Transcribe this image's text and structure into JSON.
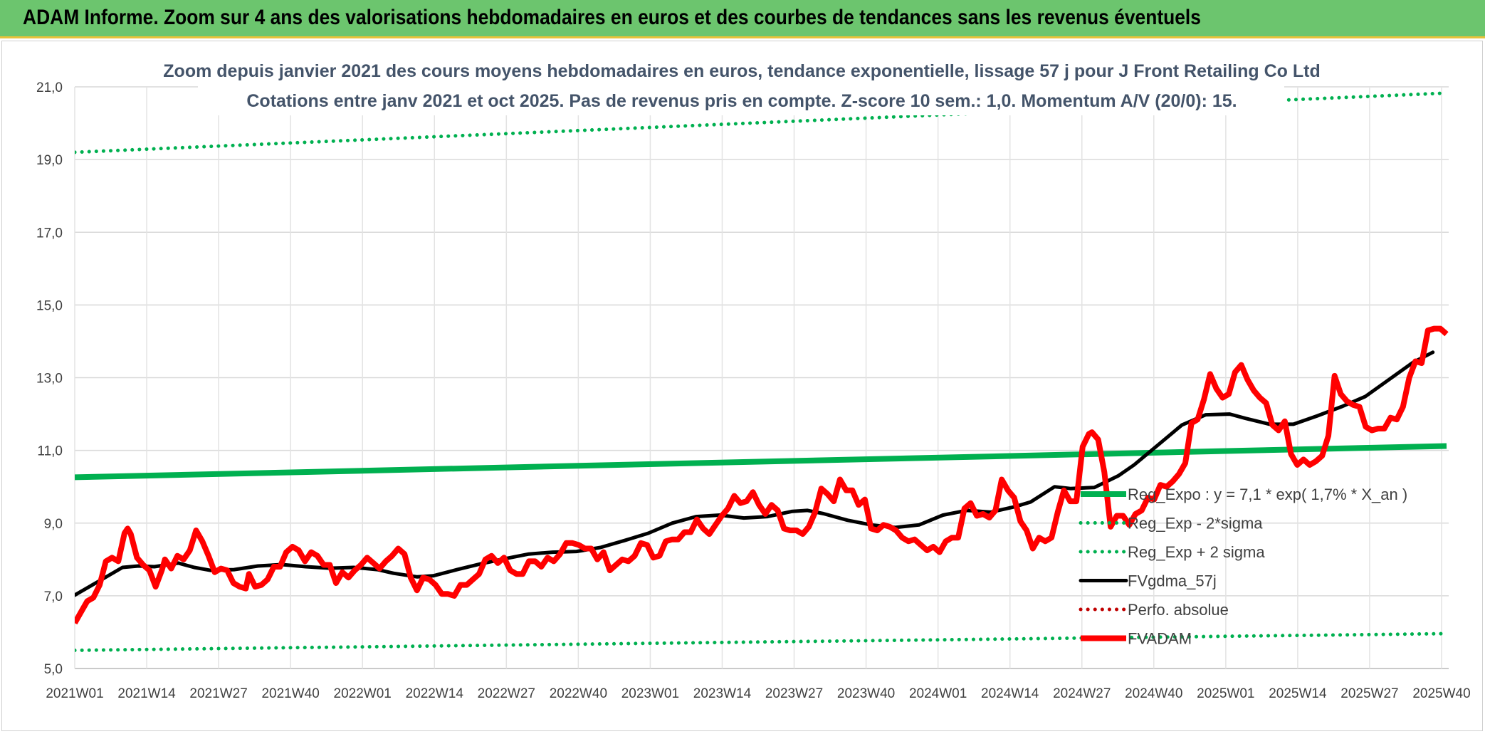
{
  "banner": {
    "title": "ADAM Informe. Zoom sur 4 ans des valorisations hebdomadaires en euros et des courbes de tendances sans les revenus éventuels"
  },
  "chart_data": {
    "type": "line",
    "title": "Zoom depuis janvier 2021 des cours moyens hebdomadaires en euros, tendance exponentielle, lissage 57 j pour J Front Retailing Co Ltd",
    "subtitle": "Cotations entre janv 2021 et oct 2025. Pas de revenus pris en compte. Z-score 10 sem.: 1,0. Momentum A/V (20/0): 15.",
    "xlabel": "",
    "ylabel": "",
    "ylim": [
      5.0,
      21.0
    ],
    "yticks": [
      "5,0",
      "7,0",
      "9,0",
      "11,0",
      "13,0",
      "15,0",
      "17,0",
      "19,0",
      "21,0"
    ],
    "x_tick_labels": [
      "2021W01",
      "2021W14",
      "2021W27",
      "2021W40",
      "2022W01",
      "2022W14",
      "2022W27",
      "2022W40",
      "2023W01",
      "2023W14",
      "2023W27",
      "2023W40",
      "2024W01",
      "2024W14",
      "2024W27",
      "2024W40",
      "2025W01",
      "2025W14",
      "2025W27",
      "2025W40"
    ],
    "x_range_weeks": [
      0,
      247
    ],
    "grid": true,
    "legend_position": "right",
    "series": [
      {
        "name": "Reg_Expo : y = 7,1 * exp( 1,7% *  X_an )",
        "color": "#00b050",
        "style": "solid-thick",
        "points": [
          [
            0,
            10.26
          ],
          [
            247,
            11.12
          ]
        ]
      },
      {
        "name": "Reg_Exp - 2*sigma",
        "color": "#00b050",
        "style": "dotted",
        "points": [
          [
            0,
            5.5
          ],
          [
            247,
            5.96
          ]
        ]
      },
      {
        "name": "Reg_Exp + 2 sigma",
        "color": "#00b050",
        "style": "dotted",
        "points": [
          [
            0,
            19.2
          ],
          [
            247,
            20.83
          ]
        ]
      },
      {
        "name": "FVgdma_57j",
        "color": "#000000",
        "style": "solid",
        "points": [
          [
            0,
            7.02
          ],
          [
            6,
            7.4
          ],
          [
            12,
            7.78
          ],
          [
            16,
            7.82
          ],
          [
            20,
            7.8
          ],
          [
            26,
            7.9
          ],
          [
            30,
            7.78
          ],
          [
            34,
            7.7
          ],
          [
            40,
            7.72
          ],
          [
            46,
            7.82
          ],
          [
            52,
            7.86
          ],
          [
            58,
            7.8
          ],
          [
            64,
            7.76
          ],
          [
            70,
            7.78
          ],
          [
            76,
            7.72
          ],
          [
            80,
            7.62
          ],
          [
            86,
            7.52
          ],
          [
            90,
            7.55
          ],
          [
            96,
            7.72
          ],
          [
            102,
            7.88
          ],
          [
            108,
            8.02
          ],
          [
            114,
            8.15
          ],
          [
            120,
            8.2
          ],
          [
            126,
            8.22
          ],
          [
            132,
            8.33
          ],
          [
            138,
            8.52
          ],
          [
            144,
            8.72
          ],
          [
            150,
            9.0
          ],
          [
            156,
            9.18
          ],
          [
            162,
            9.22
          ],
          [
            168,
            9.14
          ],
          [
            174,
            9.18
          ],
          [
            180,
            9.32
          ],
          [
            184,
            9.35
          ],
          [
            188,
            9.26
          ],
          [
            194,
            9.08
          ],
          [
            200,
            8.95
          ],
          [
            206,
            8.88
          ],
          [
            212,
            8.95
          ],
          [
            218,
            9.22
          ],
          [
            224,
            9.35
          ],
          [
            230,
            9.3
          ],
          [
            236,
            9.45
          ],
          [
            240,
            9.58
          ],
          [
            246,
            10.0
          ],
          [
            250,
            9.95
          ],
          [
            256,
            9.98
          ],
          [
            262,
            10.3
          ],
          [
            266,
            10.6
          ],
          [
            272,
            11.15
          ],
          [
            278,
            11.7
          ],
          [
            284,
            11.98
          ],
          [
            290,
            12.0
          ],
          [
            294,
            11.88
          ],
          [
            300,
            11.72
          ],
          [
            306,
            11.72
          ],
          [
            312,
            11.95
          ],
          [
            318,
            12.2
          ],
          [
            324,
            12.48
          ],
          [
            330,
            12.95
          ],
          [
            336,
            13.42
          ],
          [
            341,
            13.7
          ]
        ]
      },
      {
        "name": "Perfo. absolue",
        "color": "#c00000",
        "style": "dotted",
        "points": []
      },
      {
        "name": "FVADAM",
        "color": "#ff0000",
        "style": "solid-thick",
        "points": [
          [
            0,
            6.25
          ],
          [
            2,
            6.55
          ],
          [
            4,
            6.85
          ],
          [
            6,
            6.95
          ],
          [
            8,
            7.3
          ],
          [
            10,
            7.95
          ],
          [
            12,
            8.05
          ],
          [
            14,
            7.95
          ],
          [
            16,
            8.72
          ],
          [
            17,
            8.85
          ],
          [
            18,
            8.7
          ],
          [
            20,
            8.05
          ],
          [
            22,
            7.85
          ],
          [
            24,
            7.7
          ],
          [
            26,
            7.25
          ],
          [
            28,
            7.7
          ],
          [
            29,
            8.0
          ],
          [
            31,
            7.75
          ],
          [
            33,
            8.1
          ],
          [
            35,
            8.0
          ],
          [
            37,
            8.25
          ],
          [
            39,
            8.8
          ],
          [
            41,
            8.5
          ],
          [
            43,
            8.1
          ],
          [
            45,
            7.65
          ],
          [
            47,
            7.75
          ],
          [
            49,
            7.7
          ],
          [
            51,
            7.35
          ],
          [
            53,
            7.25
          ],
          [
            55,
            7.2
          ],
          [
            56,
            7.6
          ],
          [
            58,
            7.25
          ],
          [
            60,
            7.3
          ],
          [
            62,
            7.45
          ],
          [
            64,
            7.8
          ],
          [
            66,
            7.8
          ],
          [
            68,
            8.2
          ],
          [
            70,
            8.35
          ],
          [
            72,
            8.25
          ],
          [
            74,
            7.95
          ],
          [
            76,
            8.2
          ],
          [
            78,
            8.1
          ],
          [
            80,
            7.85
          ],
          [
            82,
            7.85
          ],
          [
            84,
            7.35
          ],
          [
            86,
            7.65
          ],
          [
            88,
            7.5
          ],
          [
            90,
            7.7
          ],
          [
            92,
            7.85
          ],
          [
            94,
            8.05
          ],
          [
            96,
            7.9
          ],
          [
            98,
            7.75
          ],
          [
            100,
            7.95
          ],
          [
            102,
            8.1
          ],
          [
            104,
            8.3
          ],
          [
            106,
            8.15
          ],
          [
            108,
            7.5
          ],
          [
            110,
            7.15
          ],
          [
            112,
            7.5
          ],
          [
            114,
            7.45
          ],
          [
            116,
            7.3
          ],
          [
            118,
            7.05
          ],
          [
            120,
            7.05
          ],
          [
            122,
            7.0
          ],
          [
            124,
            7.3
          ],
          [
            126,
            7.3
          ],
          [
            128,
            7.45
          ],
          [
            130,
            7.6
          ],
          [
            132,
            8.0
          ],
          [
            134,
            8.1
          ],
          [
            136,
            7.9
          ],
          [
            138,
            8.05
          ],
          [
            140,
            7.7
          ],
          [
            142,
            7.6
          ],
          [
            144,
            7.6
          ],
          [
            146,
            7.95
          ],
          [
            148,
            7.95
          ],
          [
            150,
            7.8
          ],
          [
            152,
            8.05
          ],
          [
            154,
            7.95
          ],
          [
            156,
            8.15
          ],
          [
            158,
            8.45
          ],
          [
            160,
            8.45
          ],
          [
            162,
            8.4
          ],
          [
            164,
            8.3
          ],
          [
            166,
            8.3
          ],
          [
            168,
            8.0
          ],
          [
            170,
            8.2
          ],
          [
            172,
            7.7
          ],
          [
            174,
            7.85
          ],
          [
            176,
            8.0
          ],
          [
            178,
            7.95
          ],
          [
            180,
            8.1
          ],
          [
            182,
            8.45
          ],
          [
            184,
            8.4
          ],
          [
            186,
            8.05
          ],
          [
            188,
            8.1
          ],
          [
            190,
            8.5
          ],
          [
            192,
            8.55
          ],
          [
            194,
            8.55
          ],
          [
            196,
            8.75
          ],
          [
            198,
            8.75
          ],
          [
            200,
            9.1
          ],
          [
            202,
            8.85
          ],
          [
            204,
            8.7
          ],
          [
            206,
            8.95
          ],
          [
            208,
            9.2
          ],
          [
            210,
            9.4
          ],
          [
            212,
            9.75
          ],
          [
            214,
            9.55
          ],
          [
            216,
            9.6
          ],
          [
            218,
            9.85
          ],
          [
            220,
            9.5
          ],
          [
            222,
            9.25
          ],
          [
            224,
            9.5
          ],
          [
            226,
            9.35
          ],
          [
            228,
            8.85
          ],
          [
            230,
            8.8
          ],
          [
            232,
            8.8
          ],
          [
            234,
            8.7
          ],
          [
            236,
            8.9
          ],
          [
            238,
            9.3
          ],
          [
            240,
            9.95
          ],
          [
            242,
            9.8
          ],
          [
            244,
            9.6
          ],
          [
            246,
            10.2
          ],
          [
            248,
            9.9
          ],
          [
            250,
            9.9
          ],
          [
            252,
            9.5
          ],
          [
            254,
            9.65
          ],
          [
            256,
            8.85
          ],
          [
            258,
            8.8
          ],
          [
            260,
            8.95
          ],
          [
            262,
            8.9
          ],
          [
            264,
            8.8
          ],
          [
            266,
            8.6
          ],
          [
            268,
            8.5
          ],
          [
            270,
            8.55
          ],
          [
            272,
            8.4
          ],
          [
            274,
            8.25
          ],
          [
            276,
            8.35
          ],
          [
            278,
            8.2
          ],
          [
            280,
            8.5
          ],
          [
            282,
            8.6
          ],
          [
            284,
            8.6
          ],
          [
            286,
            9.4
          ],
          [
            288,
            9.55
          ],
          [
            290,
            9.2
          ],
          [
            292,
            9.25
          ],
          [
            294,
            9.15
          ],
          [
            296,
            9.35
          ],
          [
            298,
            10.2
          ],
          [
            300,
            9.9
          ],
          [
            302,
            9.7
          ],
          [
            304,
            9.05
          ],
          [
            306,
            8.8
          ],
          [
            308,
            8.3
          ],
          [
            310,
            8.6
          ],
          [
            312,
            8.5
          ],
          [
            314,
            8.6
          ],
          [
            316,
            9.3
          ],
          [
            318,
            9.9
          ],
          [
            320,
            9.6
          ],
          [
            322,
            9.6
          ],
          [
            324,
            11.1
          ],
          [
            326,
            11.45
          ],
          [
            327,
            11.5
          ],
          [
            329,
            11.3
          ],
          [
            331,
            10.4
          ],
          [
            333,
            8.9
          ],
          [
            335,
            9.2
          ],
          [
            337,
            9.2
          ],
          [
            339,
            8.95
          ],
          [
            341,
            9.25
          ],
          [
            343,
            9.35
          ],
          [
            345,
            9.7
          ],
          [
            347,
            9.65
          ],
          [
            349,
            10.05
          ],
          [
            351,
            10.0
          ],
          [
            353,
            10.15
          ],
          [
            355,
            10.35
          ],
          [
            357,
            10.65
          ],
          [
            359,
            11.75
          ],
          [
            361,
            11.85
          ],
          [
            363,
            12.4
          ],
          [
            365,
            13.1
          ],
          [
            367,
            12.7
          ],
          [
            369,
            12.45
          ],
          [
            371,
            12.55
          ],
          [
            373,
            13.15
          ],
          [
            375,
            13.35
          ],
          [
            377,
            12.95
          ],
          [
            379,
            12.65
          ],
          [
            381,
            12.45
          ],
          [
            383,
            12.3
          ],
          [
            385,
            11.7
          ],
          [
            387,
            11.55
          ],
          [
            389,
            11.8
          ],
          [
            391,
            10.9
          ],
          [
            393,
            10.6
          ],
          [
            395,
            10.75
          ],
          [
            397,
            10.6
          ],
          [
            399,
            10.7
          ],
          [
            401,
            10.85
          ],
          [
            403,
            11.4
          ],
          [
            405,
            13.05
          ],
          [
            407,
            12.55
          ],
          [
            409,
            12.35
          ],
          [
            411,
            12.25
          ],
          [
            413,
            12.2
          ],
          [
            415,
            11.65
          ],
          [
            417,
            11.55
          ],
          [
            419,
            11.6
          ],
          [
            421,
            11.6
          ],
          [
            423,
            11.9
          ],
          [
            425,
            11.85
          ],
          [
            427,
            12.2
          ],
          [
            429,
            13.0
          ],
          [
            431,
            13.45
          ],
          [
            433,
            13.4
          ],
          [
            435,
            14.3
          ],
          [
            437,
            14.35
          ],
          [
            439,
            14.35
          ],
          [
            441,
            14.2
          ]
        ]
      }
    ]
  }
}
